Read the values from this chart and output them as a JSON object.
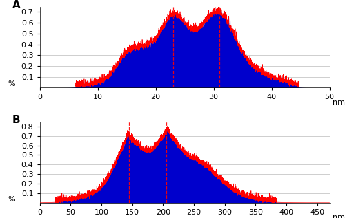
{
  "panel_A": {
    "label": "A",
    "xlim": [
      0,
      50
    ],
    "ylim": [
      0,
      0.75
    ],
    "xlabel": "nm",
    "yticks": [
      0.1,
      0.2,
      0.3,
      0.4,
      0.5,
      0.6,
      0.7
    ],
    "xticks": [
      0,
      10,
      20,
      30,
      40,
      50
    ],
    "ylabel_extra": "%",
    "vlines": [
      23,
      31
    ],
    "noise_seed": 42
  },
  "panel_B": {
    "label": "B",
    "xlim": [
      0,
      470
    ],
    "ylim": [
      0,
      0.85
    ],
    "xlabel": "nm",
    "yticks": [
      0.1,
      0.2,
      0.3,
      0.4,
      0.5,
      0.6,
      0.7,
      0.8
    ],
    "xticks": [
      0,
      50,
      100,
      150,
      200,
      250,
      300,
      350,
      400,
      450
    ],
    "ylabel_extra": "%",
    "vlines": [
      145,
      205
    ],
    "noise_seed": 7
  },
  "fill_color": "#0000cc",
  "line_color": "#ff0000",
  "bg_color": "#ffffff",
  "grid_color": "#bbbbbb",
  "font_size": 9
}
